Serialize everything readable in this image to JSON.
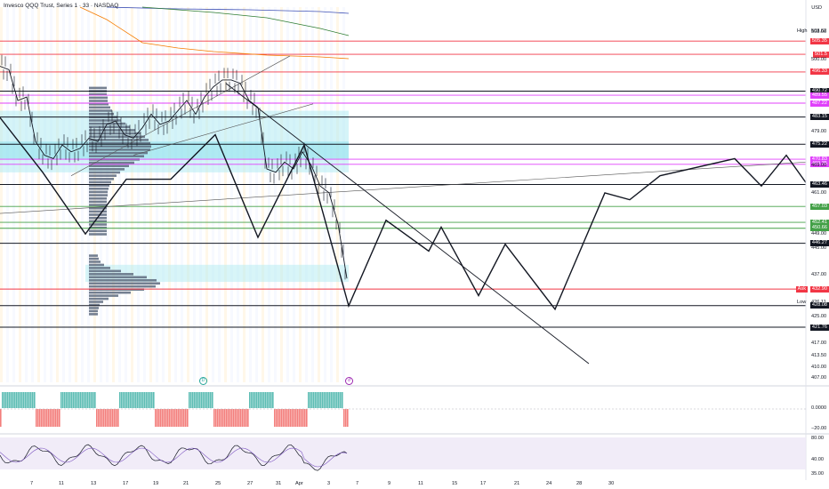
{
  "chart": {
    "title": "Invesco QQQ Trust, Series 1 · 33 · NASDAQ",
    "currency": "USD",
    "high_label": "High",
    "high_value": "503.62",
    "low_label": "Low",
    "low_value": "426.11",
    "price_axis_labels": [
      "508.00",
      "500.00",
      "479.00",
      "469.00",
      "461.00",
      "449.00",
      "445.00",
      "437.00",
      "425.00",
      "417.00",
      "413.50",
      "410.00",
      "407.00"
    ],
    "level_tags": [
      {
        "value": "505.35",
        "color": "#f23645"
      },
      {
        "value": "501.5",
        "color": "#f23645"
      },
      {
        "value": "496.33",
        "color": "#f23645"
      },
      {
        "value": "490.72",
        "color": "#131722"
      },
      {
        "value": "489.55",
        "color": "#e040fb"
      },
      {
        "value": "487.22",
        "color": "#e040fb"
      },
      {
        "value": "483.15",
        "color": "#131722"
      },
      {
        "value": "475.22",
        "color": "#131722"
      },
      {
        "value": "470.83",
        "color": "#e040fb"
      },
      {
        "value": "469.35",
        "color": "#e040fb"
      },
      {
        "value": "463.46",
        "color": "#131722"
      },
      {
        "value": "457.03",
        "color": "#43a047"
      },
      {
        "value": "452.41",
        "color": "#43a047"
      },
      {
        "value": "450.66",
        "color": "#43a047"
      },
      {
        "value": "446.27",
        "color": "#131722"
      },
      {
        "value": "432.90",
        "color": "#f23645"
      },
      {
        "value": "428.08",
        "color": "#131722"
      },
      {
        "value": "421.76",
        "color": "#131722"
      }
    ],
    "current_price_tag": {
      "label": "Ask",
      "value": "432.90"
    },
    "time_labels": [
      "7",
      "11",
      "13",
      "17",
      "19",
      "21",
      "25",
      "27",
      "31",
      "Apr",
      "3",
      "7",
      "9",
      "11",
      "15",
      "17",
      "21",
      "24",
      "28",
      "30"
    ],
    "osc1_axis": [
      "0.0000",
      "−20.00"
    ],
    "osc2_axis": [
      "80.00",
      "40.00",
      "35.00"
    ]
  },
  "chart_data": {
    "type": "line",
    "title": "Invesco QQQ Trust, Series 1 · 33 · NASDAQ",
    "xlabel": "",
    "ylabel": "USD",
    "ylim": [
      405,
      510
    ],
    "series": [
      {
        "name": "",
        "x": [
          0,
          10,
          20,
          30,
          40,
          50,
          60,
          70,
          80,
          90,
          100,
          110,
          120,
          130,
          140,
          150,
          160,
          170,
          180,
          190,
          200,
          210,
          220,
          230,
          240,
          250,
          260,
          270,
          280,
          290,
          300,
          310,
          320,
          330,
          340,
          350,
          360,
          370,
          380,
          390
        ],
        "values": [
          498,
          497,
          488,
          489,
          476,
          472,
          471,
          475,
          473,
          474,
          477,
          476,
          481,
          482,
          478,
          477,
          480,
          484,
          481,
          482,
          485,
          488,
          484,
          489,
          492,
          494,
          494,
          493,
          488,
          486,
          468,
          467,
          470,
          468,
          473,
          469,
          463,
          461,
          452,
          436
        ]
      },
      {
        "name": "",
        "x": [
          0,
          48,
          96,
          142,
          192,
          242,
          290,
          342,
          392,
          434,
          482,
          496,
          538,
          568,
          624,
          680,
          708,
          742,
          826,
          856,
          884,
          906
        ],
        "values": [
          483,
          467,
          449,
          465,
          465,
          478,
          448,
          475,
          428,
          453,
          444,
          451,
          431,
          446,
          427,
          461,
          459,
          466,
          471,
          463,
          472,
          464
        ]
      }
    ],
    "horizontal_levels": [
      505.35,
      501.5,
      496.33,
      490.72,
      489.55,
      487.22,
      483.15,
      475.22,
      470.83,
      469.35,
      463.46,
      457.03,
      452.41,
      450.66,
      446.27,
      432.9,
      428.08,
      421.76
    ]
  }
}
